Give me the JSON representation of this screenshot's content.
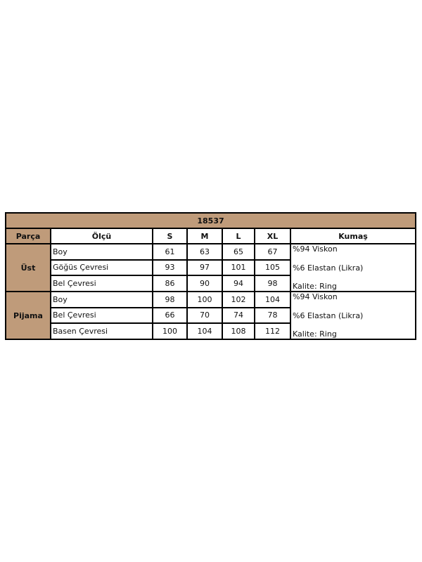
{
  "title": "18537",
  "colors": {
    "header_bg": "#bf9b7a",
    "border": "#000000"
  },
  "headers": [
    "Parça",
    "Ölçü",
    "S",
    "M",
    "L",
    "XL",
    "Kumaş"
  ],
  "groups": [
    {
      "part": "Üst",
      "rows": [
        {
          "measure": "Boy",
          "values": [
            "61",
            "63",
            "65",
            "67"
          ]
        },
        {
          "measure": "Göğüs Çevresi",
          "values": [
            "93",
            "97",
            "101",
            "105"
          ]
        },
        {
          "measure": "Bel Çevresi",
          "values": [
            "86",
            "90",
            "94",
            "98"
          ]
        }
      ],
      "fabric": [
        "%94 Viskon",
        "%6 Elastan (Likra)",
        "Kalite: Ring"
      ]
    },
    {
      "part": "Pijama",
      "rows": [
        {
          "measure": "Boy",
          "values": [
            "98",
            "100",
            "102",
            "104"
          ]
        },
        {
          "measure": "Bel Çevresi",
          "values": [
            "66",
            "70",
            "74",
            "78"
          ]
        },
        {
          "measure": "Basen Çevresi",
          "values": [
            "100",
            "104",
            "108",
            "112"
          ]
        }
      ],
      "fabric": [
        "%94 Viskon",
        "%6 Elastan (Likra)",
        "Kalite: Ring"
      ]
    }
  ]
}
